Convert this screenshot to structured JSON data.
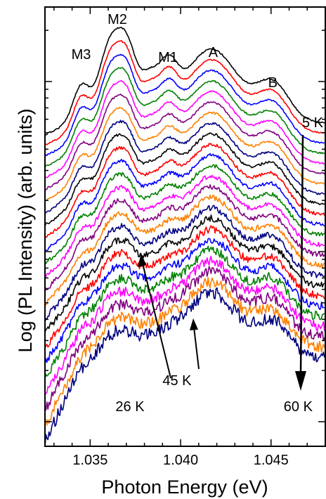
{
  "chart_data": {
    "type": "line",
    "title": "",
    "xlabel": "Photon Energy (eV)",
    "ylabel": "Log (PL Intensity) (arb. units)",
    "xlim": [
      1.0325,
      1.048
    ],
    "x_ticks": [
      1.035,
      1.04,
      1.045
    ],
    "x_tick_labels": [
      "1.035",
      "1.040",
      "1.045"
    ],
    "y_scale": "log",
    "y_tick_labels_shown": false,
    "grid": false,
    "legend": "none",
    "series_count": 24,
    "series_colors": [
      "#000000",
      "#ff0000",
      "#0000ff",
      "#008000",
      "#ff00ff",
      "#800080",
      "#ff8000",
      "#000080",
      "#000000",
      "#ff0000",
      "#0000ff",
      "#008000",
      "#ff00ff",
      "#800080",
      "#ff8000",
      "#000080",
      "#000000",
      "#ff0000",
      "#0000ff",
      "#008000",
      "#ff00ff",
      "#800080",
      "#ff8000",
      "#000080"
    ],
    "peak_labels": [
      {
        "text": "M3",
        "x": 1.0345
      },
      {
        "text": "M2",
        "x": 1.0365
      },
      {
        "text": "M1",
        "x": 1.0393
      },
      {
        "text": "A",
        "x": 1.0418
      },
      {
        "text": "B",
        "x": 1.0451
      }
    ],
    "temperature_annotations": [
      {
        "text": "5 K",
        "x": 1.0473
      },
      {
        "text": "26 K",
        "x": 1.0372
      },
      {
        "text": "45 K",
        "x": 1.0398
      },
      {
        "text": "60 K",
        "x": 1.0465
      }
    ]
  }
}
